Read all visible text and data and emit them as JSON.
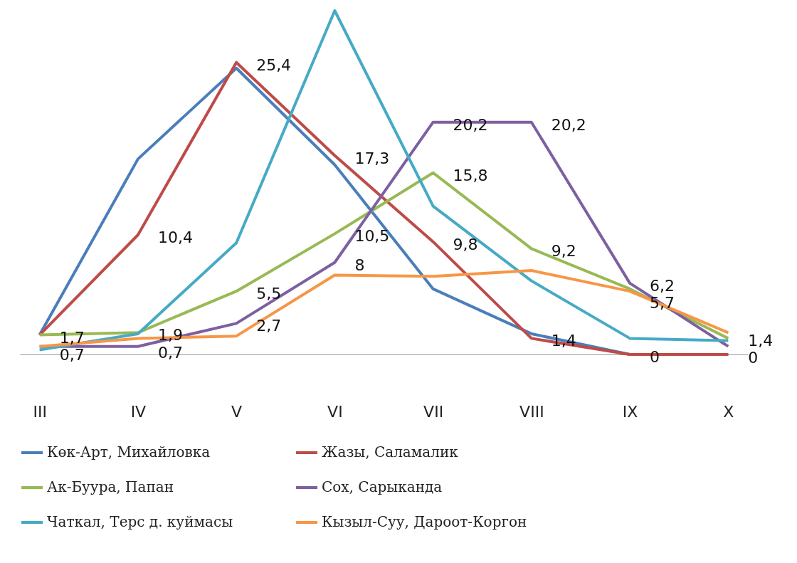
{
  "chart_data": {
    "type": "line",
    "categories": [
      "III",
      "IV",
      "V",
      "VI",
      "VII",
      "VIII",
      "IX",
      "X"
    ],
    "tick_labels": "x",
    "grid": false,
    "legend": "bottom",
    "marker": "none",
    "line_style": "solid",
    "series": [
      {
        "name": "Көк-Арт, Михайловка",
        "color": "#4a7ebb",
        "values": [
          1.7,
          17,
          24.9,
          16.5,
          5.7,
          1.8,
          0,
          0
        ]
      },
      {
        "name": "Жазы, Саламалик",
        "color": "#be4b48",
        "values": [
          1.7,
          10.4,
          25.4,
          17.3,
          9.8,
          1.4,
          0,
          0
        ],
        "value_labels": [
          null,
          "10,4",
          "25,4",
          "17,3",
          "9,8",
          "1,4",
          "0",
          "0"
        ]
      },
      {
        "name": "Ак-Буура, Папан",
        "color": "#98b954",
        "values": [
          1.7,
          1.9,
          5.5,
          10.5,
          15.8,
          9.2,
          5.7,
          1.4
        ],
        "value_labels": [
          "1,7",
          "1,9",
          "5,5",
          "10,5",
          "15,8",
          "9,2",
          "5,7",
          "1,4"
        ]
      },
      {
        "name": "Сох, Сарыканда",
        "color": "#7d60a0",
        "values": [
          0.7,
          0.7,
          2.7,
          8,
          20.2,
          20.2,
          6.2,
          0.7
        ],
        "value_labels": [
          "0,7",
          "0,7",
          "2,7",
          "8",
          "20,2",
          "20,2",
          "6,2",
          null
        ]
      },
      {
        "name": "Чаткал, Терс д. куймасы",
        "color": "#46aac5",
        "values": [
          0.4,
          1.8,
          9.7,
          29.9,
          12.9,
          6.4,
          1.4,
          1.2
        ]
      },
      {
        "name": "Кызыл-Суу, Дароот-Коргон",
        "color": "#f79646",
        "values": [
          0.7,
          1.4,
          1.6,
          6.9,
          6.8,
          7.3,
          5.5,
          1.9
        ]
      }
    ]
  }
}
